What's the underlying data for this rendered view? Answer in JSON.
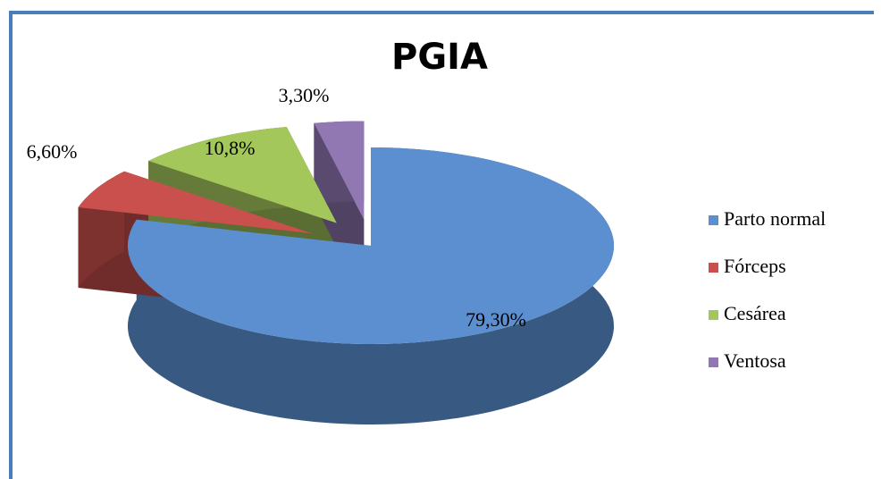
{
  "chart_data": {
    "type": "pie",
    "title": "PGIA",
    "categories": [
      "Parto normal",
      "Fórceps",
      "Cesárea",
      "Ventosa"
    ],
    "values": [
      79.3,
      6.6,
      10.8,
      3.3
    ],
    "value_labels": [
      "79,30%",
      "6,60%",
      "10,8%",
      "3,30%"
    ],
    "colors": [
      "#5b8fd0",
      "#c9504c",
      "#a4c75c",
      "#9278b3"
    ],
    "legend": "right"
  }
}
